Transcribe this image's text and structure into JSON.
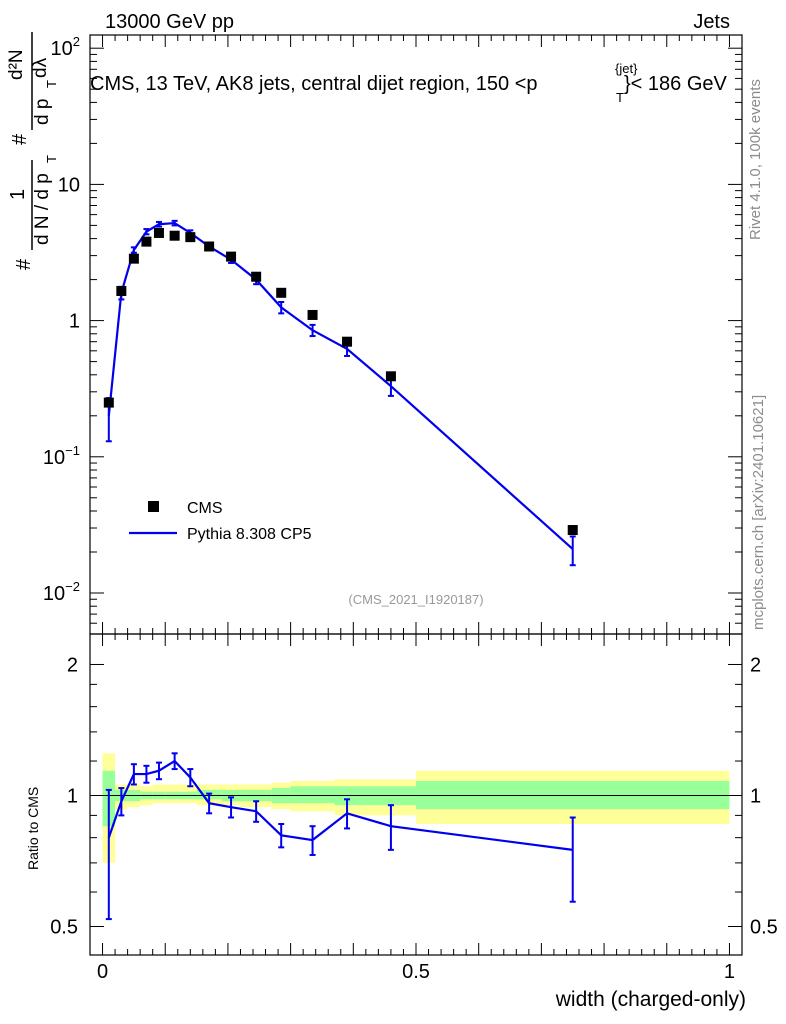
{
  "header": {
    "left": "13000 GeV pp",
    "right": "Jets"
  },
  "title": {
    "main": "CMS, 13 TeV, AK8 jets, central dijet region, 150 <p",
    "sup": "{jet}",
    "sub": "T",
    "end": "}< 186 GeV"
  },
  "side_labels": {
    "rivet": "Rivet 4.1.0,  100k events",
    "mcplots": "mcplots.cern.ch [arXiv:2401.10621]"
  },
  "analysis_id": "(CMS_2021_I1920187)",
  "y_axis_label": {
    "hash1": "#",
    "one": "1",
    "dN": "d N / d p",
    "T1": "T",
    "hash2": "#",
    "d2N": "d²N",
    "dpT": "d p",
    "T2": "T",
    "dlambda": "dλ"
  },
  "ratio_axis_label": "Ratio to CMS",
  "x_axis_label": "width (charged-only)",
  "colors": {
    "data": "#000000",
    "mc": "#0000ee",
    "band_outer": "#ffff99",
    "band_inner": "#99ff99",
    "analysis": "#999999",
    "side": "#8c8c8c"
  },
  "chart_data": [
    {
      "type": "scatter",
      "panel": "main",
      "yscale": "log",
      "xlim": [
        -0.02,
        1.02
      ],
      "ylim": [
        0.005,
        125
      ],
      "yticks": [
        {
          "v": 100,
          "label": "10",
          "exp": "2"
        },
        {
          "v": 10,
          "label": "10",
          "exp": ""
        },
        {
          "v": 1,
          "label": "1",
          "exp": ""
        },
        {
          "v": 0.1,
          "label": "10",
          "exp": "−1"
        },
        {
          "v": 0.01,
          "label": "10",
          "exp": "−2"
        }
      ],
      "legend": [
        {
          "name": "CMS",
          "kind": "marker"
        },
        {
          "name": "Pythia 8.308 CP5",
          "kind": "line"
        }
      ],
      "series": [
        {
          "name": "CMS",
          "x": [
            0.01,
            0.03,
            0.05,
            0.07,
            0.09,
            0.115,
            0.14,
            0.17,
            0.205,
            0.245,
            0.285,
            0.335,
            0.39,
            0.46,
            0.75
          ],
          "y": [
            0.25,
            1.65,
            2.85,
            3.8,
            4.4,
            4.2,
            4.1,
            3.5,
            2.95,
            2.1,
            1.6,
            1.1,
            0.7,
            0.39,
            0.029
          ]
        },
        {
          "name": "Pythia 8.308 CP5",
          "x": [
            0.01,
            0.03,
            0.05,
            0.07,
            0.09,
            0.115,
            0.14,
            0.17,
            0.205,
            0.245,
            0.285,
            0.335,
            0.39,
            0.46,
            0.75
          ],
          "y": [
            0.2,
            1.6,
            3.3,
            4.5,
            5.1,
            5.2,
            4.4,
            3.5,
            2.8,
            2.0,
            1.25,
            0.85,
            0.62,
            0.33,
            0.021
          ],
          "yerr_lo": [
            0.07,
            0.17,
            0.15,
            0.2,
            0.2,
            0.2,
            0.2,
            0.2,
            0.15,
            0.15,
            0.12,
            0.08,
            0.07,
            0.05,
            0.005
          ],
          "yerr_hi": [
            0.07,
            0.17,
            0.15,
            0.2,
            0.2,
            0.2,
            0.2,
            0.2,
            0.15,
            0.15,
            0.12,
            0.08,
            0.07,
            0.05,
            0.005
          ]
        }
      ]
    },
    {
      "type": "line",
      "panel": "ratio",
      "yscale": "log",
      "xlim": [
        -0.02,
        1.02
      ],
      "ylim": [
        0.43,
        2.35
      ],
      "yticks": [
        {
          "v": 2,
          "label": "2"
        },
        {
          "v": 1,
          "label": "1"
        },
        {
          "v": 0.5,
          "label": "0.5"
        }
      ],
      "xticks": [
        {
          "v": 0,
          "label": "0"
        },
        {
          "v": 0.5,
          "label": "0.5"
        },
        {
          "v": 1,
          "label": "1"
        }
      ],
      "bands": {
        "edges": [
          0,
          0.02,
          0.04,
          0.06,
          0.08,
          0.1,
          0.13,
          0.15,
          0.19,
          0.22,
          0.27,
          0.3,
          0.37,
          0.41,
          0.5,
          1.0
        ],
        "outer_lo": [
          0.7,
          0.93,
          0.94,
          0.95,
          0.96,
          0.96,
          0.96,
          0.95,
          0.95,
          0.94,
          0.93,
          0.92,
          0.9,
          0.9,
          0.86
        ],
        "outer_hi": [
          1.25,
          1.06,
          1.06,
          1.05,
          1.06,
          1.06,
          1.06,
          1.06,
          1.06,
          1.06,
          1.07,
          1.08,
          1.09,
          1.09,
          1.14
        ],
        "inner_lo": [
          0.85,
          0.97,
          0.97,
          0.98,
          0.98,
          0.98,
          0.98,
          0.98,
          0.97,
          0.97,
          0.96,
          0.96,
          0.95,
          0.95,
          0.93
        ],
        "inner_hi": [
          1.14,
          1.03,
          1.03,
          1.02,
          1.02,
          1.02,
          1.02,
          1.03,
          1.03,
          1.03,
          1.04,
          1.05,
          1.05,
          1.05,
          1.08
        ]
      },
      "series": [
        {
          "name": "Pythia 8.308 CP5",
          "x": [
            0.01,
            0.03,
            0.05,
            0.07,
            0.09,
            0.115,
            0.14,
            0.17,
            0.205,
            0.245,
            0.285,
            0.335,
            0.39,
            0.46,
            0.75
          ],
          "y": [
            0.8,
            0.97,
            1.12,
            1.12,
            1.14,
            1.2,
            1.1,
            0.96,
            0.94,
            0.92,
            0.81,
            0.79,
            0.91,
            0.85,
            0.75
          ],
          "yerr_lo": [
            0.28,
            0.07,
            0.06,
            0.05,
            0.05,
            0.05,
            0.05,
            0.05,
            0.05,
            0.05,
            0.05,
            0.06,
            0.07,
            0.1,
            0.18
          ],
          "yerr_hi": [
            0.23,
            0.07,
            0.06,
            0.05,
            0.05,
            0.05,
            0.05,
            0.05,
            0.05,
            0.05,
            0.05,
            0.06,
            0.07,
            0.1,
            0.14
          ]
        }
      ]
    }
  ]
}
